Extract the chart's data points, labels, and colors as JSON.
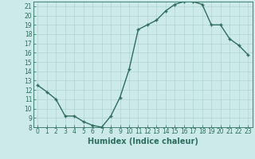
{
  "x": [
    0,
    1,
    2,
    3,
    4,
    5,
    6,
    7,
    8,
    9,
    10,
    11,
    12,
    13,
    14,
    15,
    16,
    17,
    18,
    19,
    20,
    21,
    22,
    23
  ],
  "y": [
    12.5,
    11.8,
    11.0,
    9.2,
    9.2,
    8.6,
    8.2,
    8.0,
    9.2,
    11.2,
    14.2,
    18.5,
    19.0,
    19.5,
    20.5,
    21.2,
    21.5,
    21.5,
    21.2,
    19.0,
    19.0,
    17.5,
    16.8,
    15.8
  ],
  "line_color": "#2d6e5e",
  "marker_color": "#2d6e5e",
  "bg_color": "#cdeaea",
  "grid_color": "#b0d4d4",
  "xlabel": "Humidex (Indice chaleur)",
  "ylim": [
    8,
    21.5
  ],
  "xlim": [
    -0.5,
    23.5
  ],
  "yticks": [
    8,
    9,
    10,
    11,
    12,
    13,
    14,
    15,
    16,
    17,
    18,
    19,
    20,
    21
  ],
  "xticks": [
    0,
    1,
    2,
    3,
    4,
    5,
    6,
    7,
    8,
    9,
    10,
    11,
    12,
    13,
    14,
    15,
    16,
    17,
    18,
    19,
    20,
    21,
    22,
    23
  ],
  "tick_label_fontsize": 5.5,
  "xlabel_fontsize": 7.0,
  "line_width": 1.0,
  "marker_size": 3.0
}
